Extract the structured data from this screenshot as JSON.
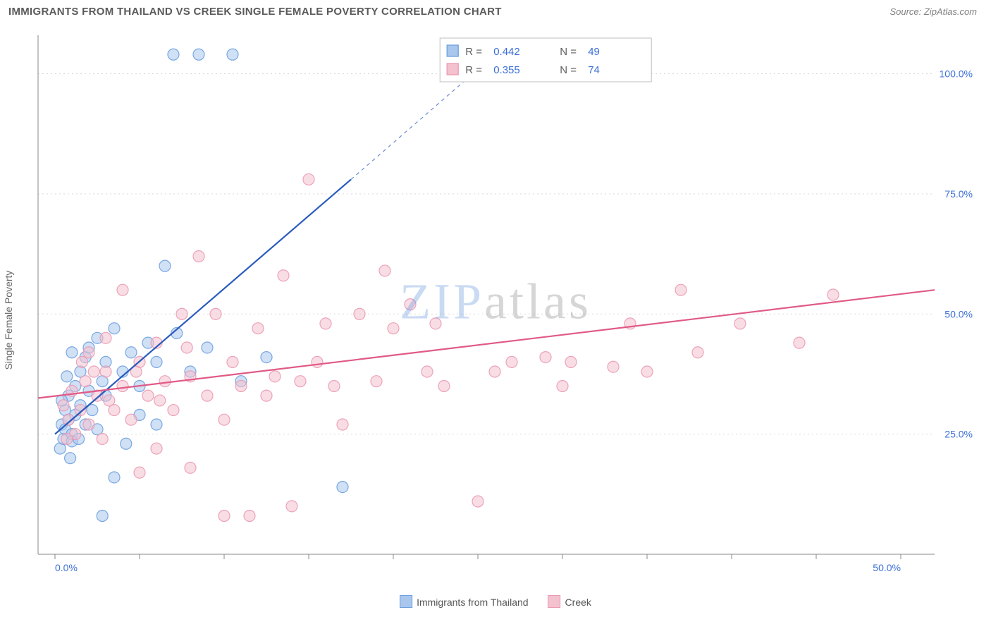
{
  "title": "IMMIGRANTS FROM THAILAND VS CREEK SINGLE FEMALE POVERTY CORRELATION CHART",
  "source": "Source: ZipAtlas.com",
  "ylabel": "Single Female Poverty",
  "watermark": {
    "zip": "ZIP",
    "atlas": "atlas"
  },
  "chart": {
    "type": "scatter",
    "background_color": "#ffffff",
    "grid_color": "#d9d9d9",
    "axis_color": "#888888",
    "tick_color": "#888888",
    "tick_label_color": "#3b6fd6",
    "x_domain": [
      -1,
      52
    ],
    "y_domain": [
      0,
      108
    ],
    "x_ticks": [
      0,
      5,
      10,
      15,
      20,
      25,
      30,
      35,
      40,
      45,
      50
    ],
    "y_gridlines": [
      25,
      50,
      75,
      100
    ],
    "x_tick_labels": {
      "0": "0.0%",
      "50": "50.0%"
    },
    "y_tick_labels": {
      "25": "25.0%",
      "50": "50.0%",
      "75": "75.0%",
      "100": "100.0%"
    },
    "marker_radius": 8,
    "marker_opacity": 0.55,
    "line_width": 2.2,
    "series": [
      {
        "name": "Immigrants from Thailand",
        "color_fill": "#a9c6ec",
        "color_stroke": "#6da0e0",
        "line_color": "#2a5bbd",
        "R": "0.442",
        "N": "49",
        "points": [
          [
            0.3,
            22
          ],
          [
            0.4,
            27
          ],
          [
            0.5,
            24
          ],
          [
            0.6,
            26
          ],
          [
            0.6,
            30
          ],
          [
            0.8,
            28
          ],
          [
            0.8,
            33
          ],
          [
            1.0,
            25
          ],
          [
            1.0,
            23.5
          ],
          [
            1.2,
            29
          ],
          [
            1.2,
            35
          ],
          [
            1.4,
            24
          ],
          [
            1.5,
            31
          ],
          [
            1.5,
            38
          ],
          [
            1.8,
            27
          ],
          [
            1.8,
            41
          ],
          [
            2.0,
            34
          ],
          [
            2.0,
            43
          ],
          [
            2.2,
            30
          ],
          [
            2.5,
            26
          ],
          [
            2.5,
            45
          ],
          [
            2.8,
            36
          ],
          [
            3.0,
            33
          ],
          [
            3.0,
            40
          ],
          [
            3.5,
            16
          ],
          [
            3.5,
            47
          ],
          [
            4.0,
            38
          ],
          [
            4.5,
            42
          ],
          [
            5.0,
            35
          ],
          [
            5.0,
            29
          ],
          [
            5.5,
            44
          ],
          [
            6.0,
            40
          ],
          [
            6.5,
            60
          ],
          [
            7.0,
            104
          ],
          [
            7.2,
            46
          ],
          [
            8.0,
            38
          ],
          [
            8.5,
            104
          ],
          [
            9.0,
            43
          ],
          [
            10.5,
            104
          ],
          [
            11.0,
            36
          ],
          [
            12.5,
            41
          ],
          [
            2.8,
            8
          ],
          [
            4.2,
            23
          ],
          [
            1.0,
            42
          ],
          [
            0.7,
            37
          ],
          [
            0.4,
            32
          ],
          [
            6.0,
            27
          ],
          [
            17.0,
            14
          ],
          [
            0.9,
            20
          ]
        ],
        "trend": {
          "x1": 0,
          "y1": 25,
          "x2": 17.5,
          "y2": 78,
          "dash_x2": 27,
          "dash_y2": 107
        }
      },
      {
        "name": "Creek",
        "color_fill": "#f4c1ce",
        "color_stroke": "#ea9ab2",
        "line_color": "#e05a86",
        "R": "0.355",
        "N": "74",
        "points": [
          [
            0.5,
            31
          ],
          [
            0.8,
            28
          ],
          [
            1.0,
            34
          ],
          [
            1.2,
            25
          ],
          [
            1.5,
            30
          ],
          [
            1.8,
            36
          ],
          [
            2.0,
            27
          ],
          [
            2.0,
            42
          ],
          [
            2.5,
            33
          ],
          [
            2.8,
            24
          ],
          [
            3.0,
            38
          ],
          [
            3.0,
            45
          ],
          [
            3.5,
            30
          ],
          [
            4.0,
            35
          ],
          [
            4.0,
            55
          ],
          [
            4.5,
            28
          ],
          [
            5.0,
            40
          ],
          [
            5.0,
            17
          ],
          [
            5.5,
            33
          ],
          [
            6.0,
            44
          ],
          [
            6.0,
            22
          ],
          [
            6.5,
            36
          ],
          [
            7.0,
            30
          ],
          [
            7.5,
            50
          ],
          [
            8.0,
            37
          ],
          [
            8.0,
            18
          ],
          [
            8.5,
            62
          ],
          [
            9.0,
            33
          ],
          [
            9.5,
            50
          ],
          [
            10.0,
            28
          ],
          [
            10.0,
            8
          ],
          [
            10.5,
            40
          ],
          [
            11.0,
            35
          ],
          [
            11.5,
            8
          ],
          [
            12.0,
            47
          ],
          [
            12.5,
            33
          ],
          [
            13.0,
            37
          ],
          [
            13.5,
            58
          ],
          [
            14.0,
            10
          ],
          [
            14.5,
            36
          ],
          [
            15.0,
            78
          ],
          [
            15.5,
            40
          ],
          [
            16.0,
            48
          ],
          [
            16.5,
            35
          ],
          [
            17.0,
            27
          ],
          [
            18.0,
            50
          ],
          [
            19.0,
            36
          ],
          [
            19.5,
            59
          ],
          [
            20.0,
            47
          ],
          [
            21.0,
            52
          ],
          [
            22.0,
            38
          ],
          [
            22.5,
            48
          ],
          [
            23.0,
            35
          ],
          [
            25.0,
            11
          ],
          [
            26.0,
            38
          ],
          [
            27.0,
            40
          ],
          [
            29.0,
            41
          ],
          [
            30.0,
            35
          ],
          [
            30.5,
            40
          ],
          [
            33.0,
            39
          ],
          [
            34.0,
            48
          ],
          [
            35.0,
            38
          ],
          [
            37.0,
            55
          ],
          [
            38.0,
            42
          ],
          [
            40.5,
            48
          ],
          [
            44.0,
            44
          ],
          [
            46.0,
            54
          ],
          [
            3.2,
            32
          ],
          [
            4.8,
            38
          ],
          [
            6.2,
            32
          ],
          [
            7.8,
            43
          ],
          [
            1.6,
            40
          ],
          [
            2.3,
            38
          ],
          [
            0.7,
            24
          ]
        ],
        "trend": {
          "x1": -1,
          "y1": 32.5,
          "x2": 52,
          "y2": 55
        }
      }
    ]
  },
  "correlation_box": {
    "border_color": "#bfbfbf",
    "bg_color": "#ffffff",
    "text_color": "#606060",
    "value_color": "#3b6fd6"
  },
  "bottom_legend": {
    "items": [
      {
        "label": "Immigrants from Thailand",
        "fill": "#a9c6ec",
        "stroke": "#6da0e0"
      },
      {
        "label": "Creek",
        "fill": "#f4c1ce",
        "stroke": "#ea9ab2"
      }
    ]
  }
}
